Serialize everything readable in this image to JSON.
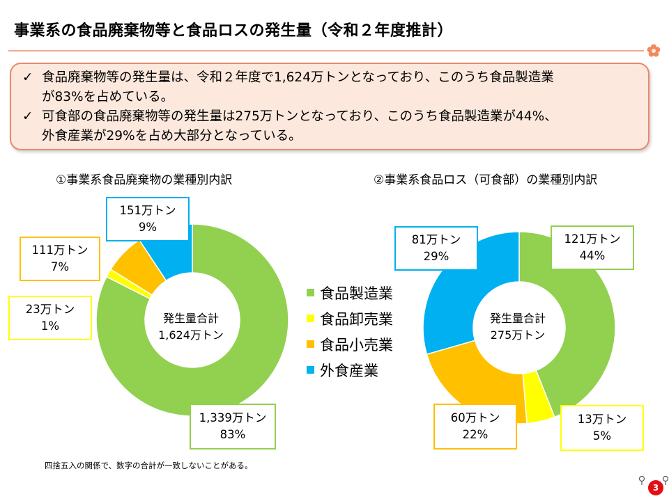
{
  "page": {
    "title": "事業系の食品廃棄物等と食品ロスの発生量（令和２年度推計）",
    "summary": [
      {
        "line1": "食品廃棄物等の発生量は、令和２年度で1,624万トンとなっており、このうち食品製造業",
        "line2": "が83%を占めている。"
      },
      {
        "line1": "可食部の食品廃棄物等の発生量は275万トンとなっており、このうち食品製造業が44%、",
        "line2": "外食産業が29%を占め大部分となっている。"
      }
    ],
    "check_glyph": "✓",
    "note": "四捨五入の関係で、数字の合計が一致しないことがある。",
    "page_number": "3"
  },
  "chart_data": [
    {
      "type": "pie",
      "title": "①事業系食品廃棄物の業種別内訳",
      "center_label": [
        "発生量合計",
        "1,624万トン"
      ],
      "categories": [
        "食品製造業",
        "食品卸売業",
        "食品小売業",
        "外食産業"
      ],
      "values": [
        1339,
        23,
        111,
        151
      ],
      "unit": "万トン",
      "labels": [
        {
          "amount": "1,339万トン",
          "pct": "83%"
        },
        {
          "amount": "23万トン",
          "pct": "1%"
        },
        {
          "amount": "111万トン",
          "pct": "7%"
        },
        {
          "amount": "151万トン",
          "pct": "9%"
        }
      ],
      "colors": [
        "#92d050",
        "#ffff00",
        "#ffc000",
        "#00b0f0"
      ],
      "start": "12 o'clock",
      "direction": "clockwise"
    },
    {
      "type": "pie",
      "title": "②事業系食品ロス（可食部）の業種別内訳",
      "center_label": [
        "発生量合計",
        "275万トン"
      ],
      "categories": [
        "食品製造業",
        "食品卸売業",
        "食品小売業",
        "外食産業"
      ],
      "values": [
        121,
        13,
        60,
        81
      ],
      "unit": "万トン",
      "labels": [
        {
          "amount": "121万トン",
          "pct": "44%"
        },
        {
          "amount": "13万トン",
          "pct": "5%"
        },
        {
          "amount": "60万トン",
          "pct": "22%"
        },
        {
          "amount": "81万トン",
          "pct": "29%"
        }
      ],
      "colors": [
        "#92d050",
        "#ffff00",
        "#ffc000",
        "#00b0f0"
      ],
      "start": "12 o'clock",
      "direction": "clockwise"
    }
  ],
  "legend": {
    "position": "between charts",
    "items": [
      {
        "label": "食品製造業",
        "color": "#92d050"
      },
      {
        "label": "食品卸売業",
        "color": "#ffff00"
      },
      {
        "label": "食品小売業",
        "color": "#ffc000"
      },
      {
        "label": "外食産業",
        "color": "#00b0f0"
      }
    ]
  }
}
